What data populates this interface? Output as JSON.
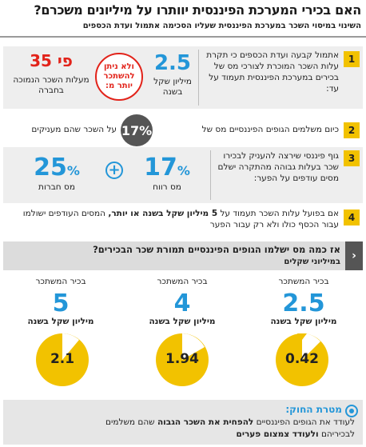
{
  "title": "האם בכירי המערכת הפיננסית יוותרו על מיליונים משכרם?",
  "subtitle": "השינוי במיסוי השכר במערכת הפיננסית שעליו הסכימה אתמול ועדת הכספים",
  "items": [
    {
      "num": "1",
      "text": "אתמול קבעה ועדת הכספים כי תקרת עלות השכר המוכרת לצורכי מס של בכירים במערכת הפיננסית תעמוד על עד:",
      "stat_value": "2.5",
      "stat_label": "מיליון שקל בשנה",
      "stamp_text": "ולא ניתן להשתכר יותר מ:",
      "red_value": "פי 35",
      "red_label": "מעלות השכר הנמוכה בחברה"
    },
    {
      "num": "2",
      "text": "כיום משלמים הגופים הפיננסיים מס של",
      "circle_value": "17%",
      "text_after": "על השכר שהם מעניקים"
    },
    {
      "num": "3",
      "text": "גוף פיננסי שירצה להעניק לבכירו שכר בעלות גבוהה מהתקרה ישלם מסים עודפים על הפער:",
      "stat_a_value": "17",
      "stat_a_unit": "%",
      "stat_a_label": "מס רווח",
      "plus": "+",
      "stat_b_value": "25",
      "stat_b_unit": "%",
      "stat_b_label": "מס חברות"
    },
    {
      "num": "4",
      "text_pre": "אם בפועל עלות השכר תעמוד על ",
      "text_bold": "5 מיליון שקל בשנה או יותר,",
      "text_post": " המסים העודפים ישולמו עבור הכסף כולו ולא רק עבור הפער"
    }
  ],
  "question": {
    "title": "אז כמה מס ישלמו הגופים הפיננסיים תמורת שכר הבכירים?",
    "unit": "במיליוני שקלים",
    "arrow": "‹"
  },
  "columns": [
    {
      "head": "בכיר המשתכר",
      "value": "2.5",
      "sub": "מיליון שקל בשנה",
      "tax": "0.42"
    },
    {
      "head": "בכיר המשתכר",
      "value": "4",
      "sub": "מיליון שקל בשנה",
      "tax": "1.94"
    },
    {
      "head": "בכיר המשתכר",
      "value": "5",
      "sub": "מיליון שקל בשנה",
      "tax": "2.1"
    }
  ],
  "footer": {
    "title": "מטרת החוק:",
    "line1_pre": "לעודד את הגופים הפיננסיים ",
    "line1_bold": "להפחית את השכר הגבוה",
    "line1_post": " שהם משלמים",
    "line2_pre": "לבכיריהם ",
    "line2_bold": "ולעודד צמצום פערים"
  },
  "colors": {
    "accent_blue": "#2396d8",
    "accent_red": "#e2231a",
    "badge_yellow": "#f2c200"
  }
}
